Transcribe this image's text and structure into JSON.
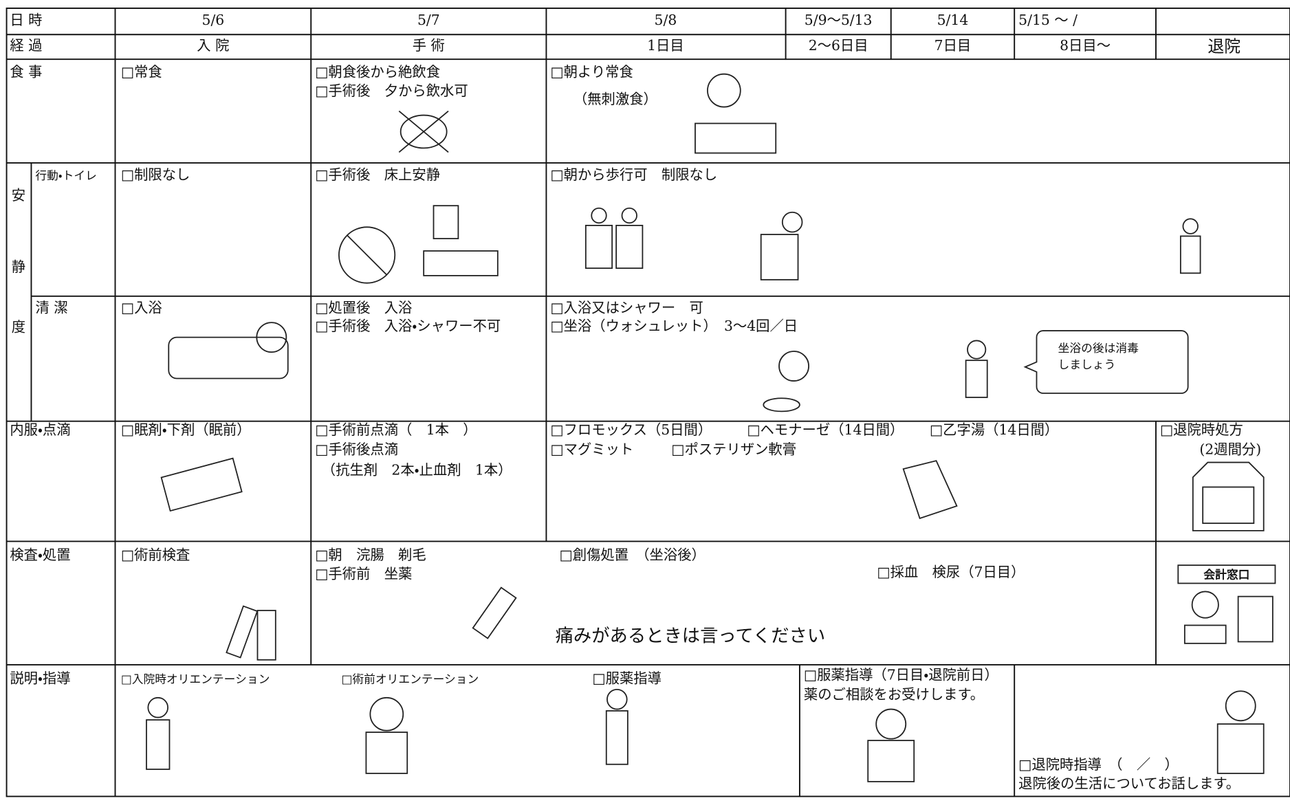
{
  "header": {
    "row1": [
      "日 時",
      "5/6",
      "5/7",
      "5/8",
      "5/9〜5/13",
      "5/14",
      "5/15 〜 /"
    ],
    "row2": [
      "経 過",
      "入 院",
      "手 術",
      "1日目",
      "2〜6日目",
      "7日目",
      "8日目〜",
      "退院"
    ]
  },
  "meal": {
    "label": "食 事",
    "admission": "□常食",
    "surgery": [
      "□朝食後から絶飲食",
      "□手術後　夕から飲水可"
    ],
    "day1": [
      "□朝より常食",
      "（無刺激食）"
    ]
  },
  "rest": {
    "group": [
      "安",
      "静",
      "度"
    ],
    "activity": {
      "label": "行動・トイレ",
      "admission": "□制限なし",
      "surgery": "□手術後　床上安静",
      "day1": "□朝から歩行可　制限なし"
    },
    "hygiene": {
      "label": "清 潔",
      "admission": "□入浴",
      "surgery": [
        "□処置後　入浴",
        "□手術後　入浴・シャワー不可"
      ],
      "day1": [
        "□入浴又はシャワー　可",
        "□坐浴（ウォシュレット）　3〜4回／日"
      ],
      "speech": [
        "坐浴の後は消毒",
        "しましょう"
      ]
    }
  },
  "medication": {
    "label": "内服・点滴",
    "admission": "□眠剤・下剤（眠前）",
    "surgery": [
      "□手術前点滴（　1本　）",
      "□手術後点滴",
      "（抗生剤　2本・止血剤　1本）"
    ],
    "day1": [
      "□フロモックス（5日間）",
      "□ヘモナーゼ（14日間）",
      "□乙字湯（14日間）",
      "□マグミット",
      "□ポステリザン軟膏"
    ],
    "discharge": [
      "□退院時処方",
      "(2週間分)"
    ]
  },
  "tests": {
    "label": "検査・処置",
    "admission": "□術前検査",
    "surgery": [
      "□朝　浣腸　剃毛",
      "□手術前　坐薬"
    ],
    "day1": "□創傷処置　（坐浴後）",
    "day7": "□採血　検尿（7日目）",
    "notice": "痛みがあるときは言ってください",
    "counter": "会計窓口"
  },
  "guidance": {
    "label": "説明・指導",
    "items": [
      "□入院時オリエンテーション",
      "□術前オリエンテーション",
      "□服薬指導",
      "□服薬指導（7日目・退院前日）",
      "薬のご相談をお受けします。",
      "□退院時指導　（　／　）",
      "退院後の生活についてお話します。"
    ]
  }
}
